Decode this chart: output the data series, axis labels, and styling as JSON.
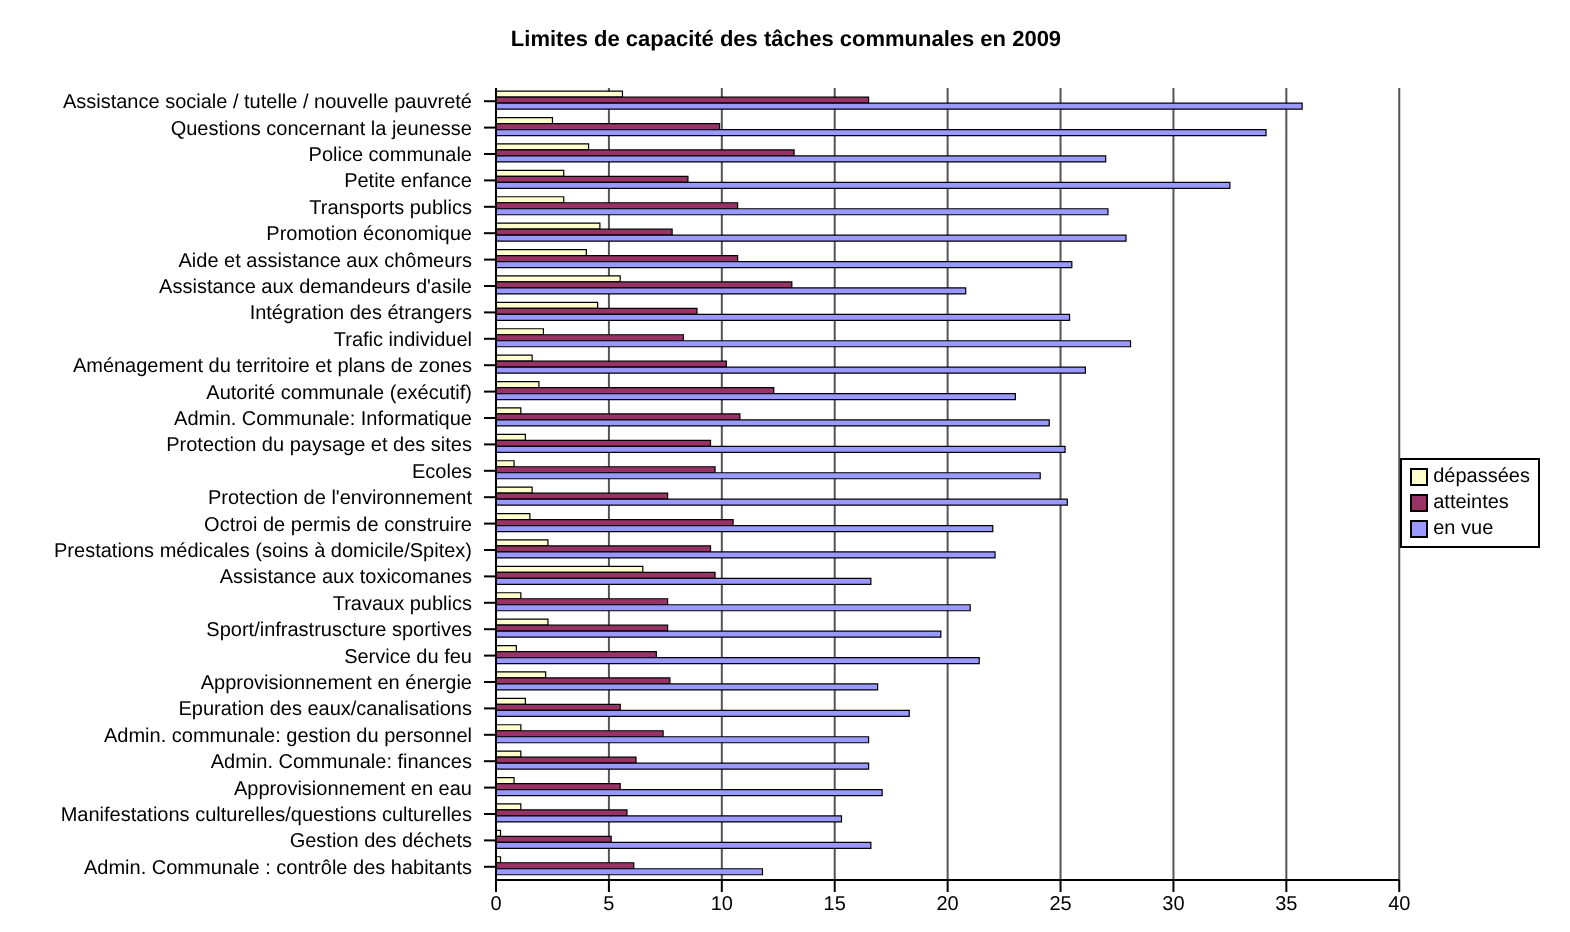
{
  "chart_data": {
    "type": "bar",
    "orientation": "horizontal",
    "title": "Limites de capacité des tâches communales en 2009",
    "categories": [
      "Assistance sociale / tutelle / nouvelle pauvreté",
      "Questions concernant la jeunesse",
      "Police communale",
      "Petite enfance",
      "Transports publics",
      "Promotion économique",
      "Aide et assistance aux chômeurs",
      "Assistance aux demandeurs d'asile",
      "Intégration des étrangers",
      "Trafic individuel",
      "Aménagement du territoire et plans de zones",
      "Autorité communale (exécutif)",
      "Admin. Communale: Informatique",
      "Protection du paysage et des sites",
      "Ecoles",
      "Protection de l'environnement",
      "Octroi de permis de construire",
      "Prestations médicales (soins à domicile/Spitex)",
      "Assistance aux toxicomanes",
      "Travaux publics",
      "Sport/infrastruscture sportives",
      "Service du feu",
      "Approvisionnement en énergie",
      "Epuration des eaux/canalisations",
      "Admin. communale: gestion du personnel",
      "Admin. Communale: finances",
      "Approvisionnement en eau",
      "Manifestations culturelles/questions culturelles",
      "Gestion des déchets",
      "Admin. Communale : contrôle des habitants"
    ],
    "series": [
      {
        "name": "dépassées",
        "color": "#ffffcc",
        "values": [
          5.6,
          2.5,
          4.1,
          3.0,
          3.0,
          4.6,
          4.0,
          5.5,
          4.5,
          2.1,
          1.6,
          1.9,
          1.1,
          1.3,
          0.8,
          1.6,
          1.5,
          2.3,
          6.5,
          1.1,
          2.3,
          0.9,
          2.2,
          1.3,
          1.1,
          1.1,
          0.8,
          1.1,
          0.2,
          0.2
        ]
      },
      {
        "name": "atteintes",
        "color": "#993366",
        "values": [
          16.5,
          9.9,
          13.2,
          8.5,
          10.7,
          7.8,
          10.7,
          13.1,
          8.9,
          8.3,
          10.2,
          12.3,
          10.8,
          9.5,
          9.7,
          7.6,
          10.5,
          9.5,
          9.7,
          7.6,
          7.6,
          7.1,
          7.7,
          5.5,
          7.4,
          6.2,
          5.5,
          5.8,
          5.1,
          6.1
        ]
      },
      {
        "name": "en vue",
        "color": "#9999ff",
        "values": [
          35.7,
          34.1,
          27.0,
          32.5,
          27.1,
          27.9,
          25.5,
          20.8,
          25.4,
          28.1,
          26.1,
          23.0,
          24.5,
          25.2,
          24.1,
          25.3,
          22.0,
          22.1,
          16.6,
          21.0,
          19.7,
          21.4,
          16.9,
          18.3,
          16.5,
          16.5,
          17.1,
          15.3,
          16.6,
          11.8
        ]
      }
    ],
    "xlim": [
      0,
      40
    ],
    "xticks": [
      0,
      5,
      10,
      15,
      20,
      25,
      30,
      35,
      40
    ],
    "grid": "x",
    "legend": "right"
  }
}
